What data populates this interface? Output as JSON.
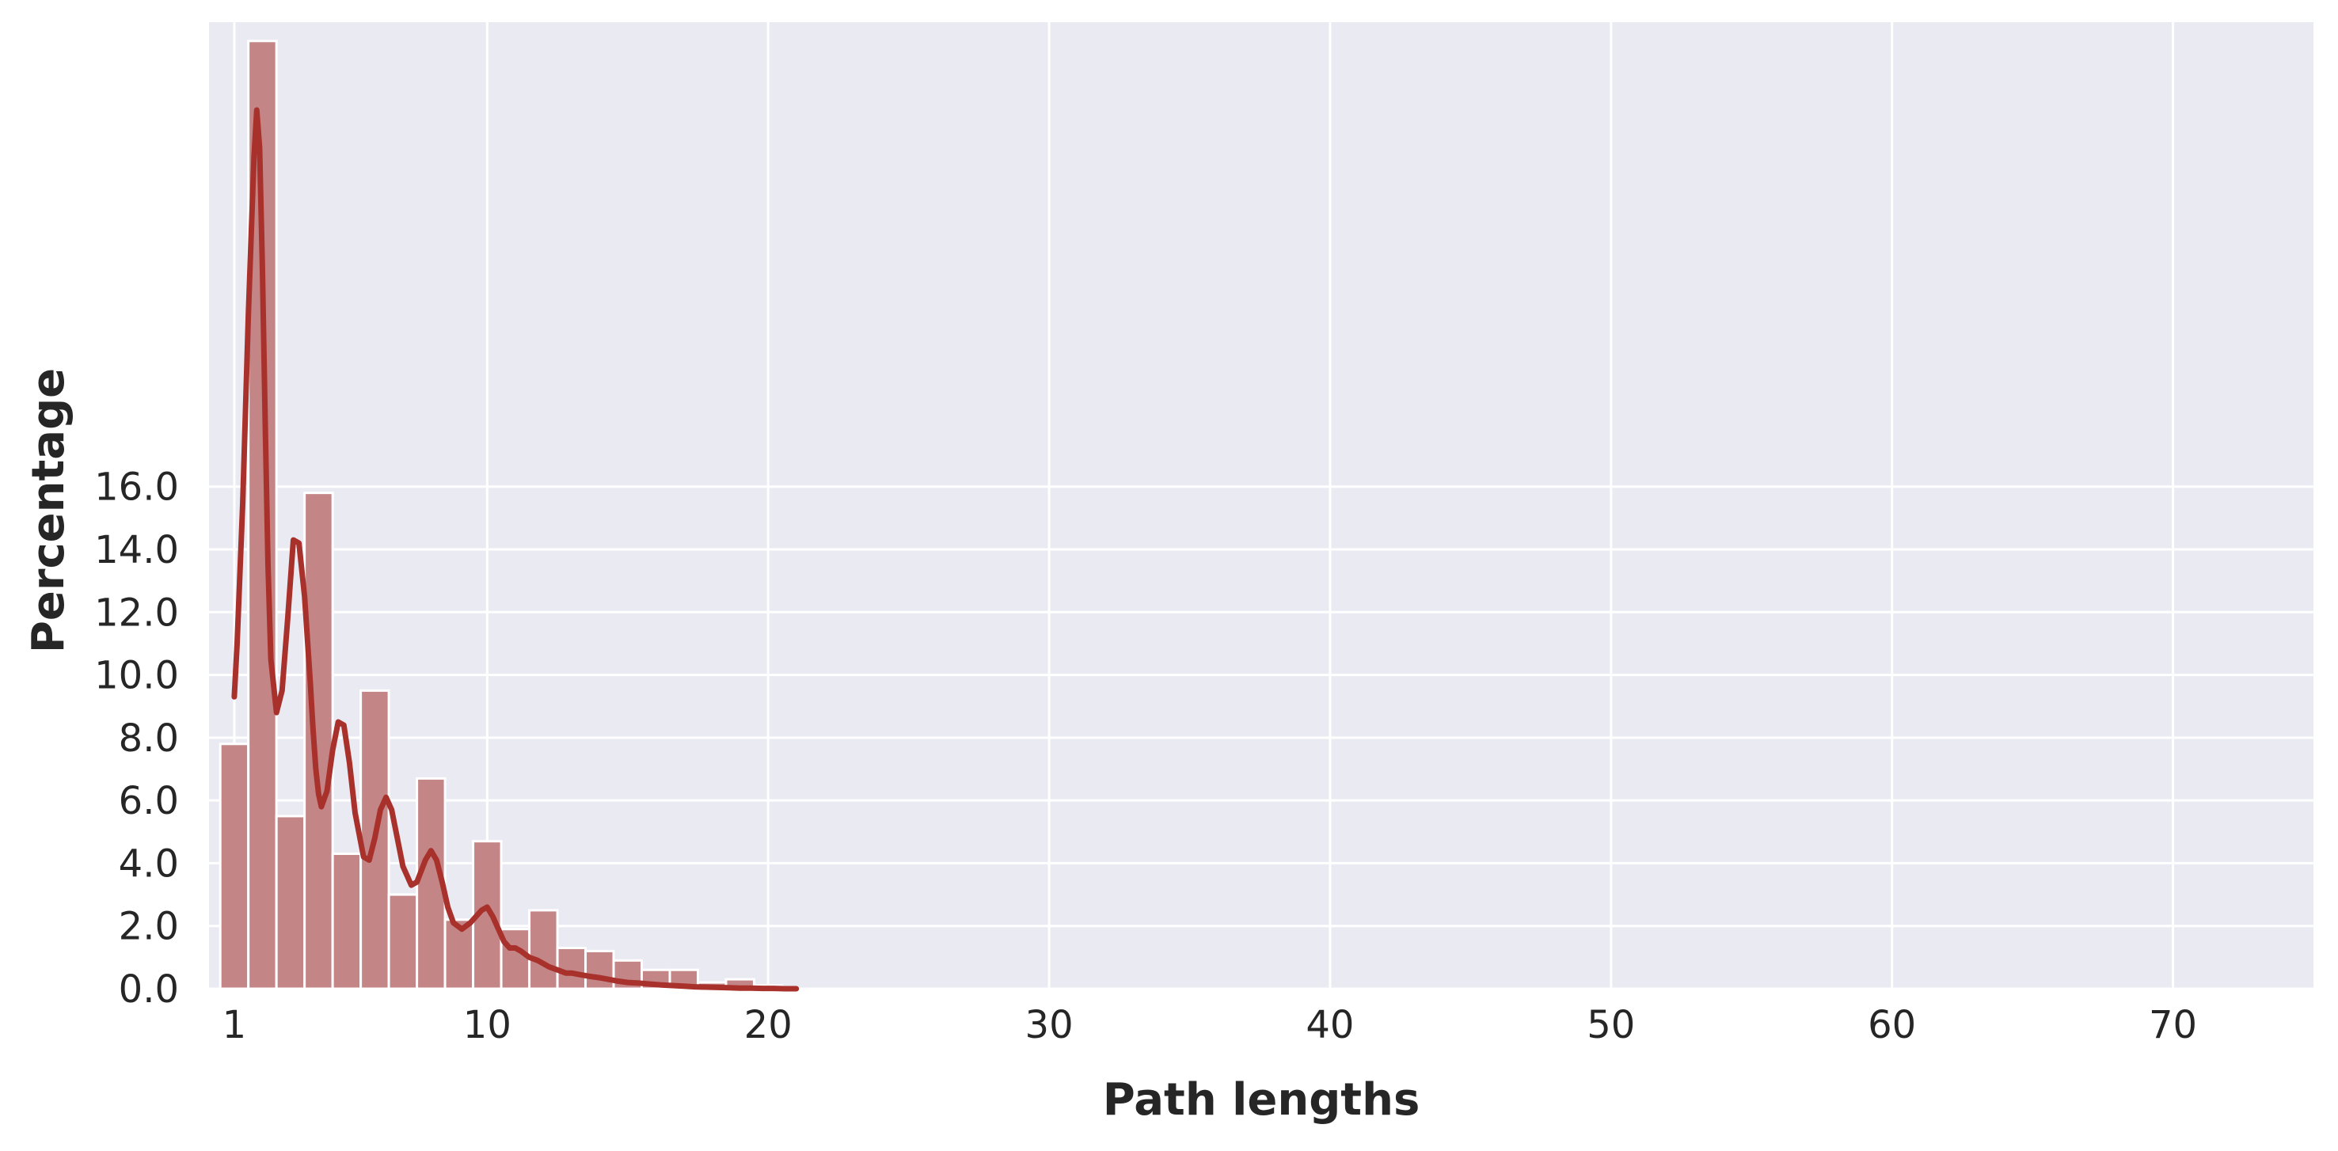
{
  "chart_data": {
    "type": "bar",
    "xlabel": "Path lengths",
    "ylabel": "Percentage",
    "xlim": [
      0.1,
      75
    ],
    "ylim": [
      0,
      30.8
    ],
    "x_ticks": [
      1,
      10,
      20,
      30,
      40,
      50,
      60,
      70
    ],
    "y_ticks": [
      0,
      2,
      4,
      6,
      8,
      10,
      12,
      14,
      16
    ],
    "x_tick_labels": [
      "1",
      "10",
      "20",
      "30",
      "40",
      "50",
      "60",
      "70"
    ],
    "y_tick_labels": [
      "0.0",
      "2.0",
      "4.0",
      "6.0",
      "8.0",
      "10.0",
      "12.0",
      "14.0",
      "16.0"
    ],
    "grid": true,
    "bin_width": 1,
    "bins": [
      {
        "x": 1,
        "value": 7.8
      },
      {
        "x": 2,
        "value": 30.2
      },
      {
        "x": 3,
        "value": 5.5
      },
      {
        "x": 4,
        "value": 15.8
      },
      {
        "x": 5,
        "value": 4.3
      },
      {
        "x": 6,
        "value": 9.5
      },
      {
        "x": 7,
        "value": 3.0
      },
      {
        "x": 8,
        "value": 6.7
      },
      {
        "x": 9,
        "value": 2.2
      },
      {
        "x": 10,
        "value": 4.7
      },
      {
        "x": 11,
        "value": 1.9
      },
      {
        "x": 12,
        "value": 2.5
      },
      {
        "x": 13,
        "value": 1.3
      },
      {
        "x": 14,
        "value": 1.2
      },
      {
        "x": 15,
        "value": 0.9
      },
      {
        "x": 16,
        "value": 0.6
      },
      {
        "x": 17,
        "value": 0.6
      },
      {
        "x": 18,
        "value": 0.2
      },
      {
        "x": 19,
        "value": 0.3
      },
      {
        "x": 20,
        "value": 0.1
      }
    ],
    "kde": {
      "x": [
        1.0,
        1.1,
        1.3,
        1.5,
        1.7,
        1.8,
        1.9,
        2.0,
        2.1,
        2.2,
        2.3,
        2.5,
        2.7,
        2.9,
        3.1,
        3.3,
        3.5,
        3.7,
        3.8,
        3.9,
        4.0,
        4.1,
        4.3,
        4.5,
        4.7,
        4.9,
        5.1,
        5.3,
        5.6,
        5.8,
        6.0,
        6.2,
        6.4,
        6.6,
        6.8,
        7.0,
        7.3,
        7.5,
        7.8,
        8.0,
        8.2,
        8.4,
        8.6,
        8.8,
        9.1,
        9.4,
        9.8,
        10.0,
        10.2,
        10.4,
        10.6,
        10.8,
        11.0,
        11.2,
        11.5,
        11.8,
        12.0,
        12.2,
        12.5,
        12.8,
        13.0,
        13.3,
        13.6,
        14.0,
        14.3,
        14.6,
        15.0,
        15.4,
        15.8,
        16.2,
        16.6,
        17.0,
        17.4,
        17.8,
        18.2,
        18.6,
        19.0,
        19.4,
        19.8,
        20.2,
        20.6,
        21.0
      ],
      "y": [
        9.3,
        11.0,
        15.5,
        21.5,
        26.5,
        28.0,
        26.8,
        23.0,
        18.0,
        13.5,
        10.5,
        8.8,
        9.5,
        11.8,
        14.3,
        14.2,
        12.5,
        9.8,
        8.3,
        7.0,
        6.2,
        5.8,
        6.3,
        7.6,
        8.5,
        8.4,
        7.2,
        5.6,
        4.2,
        4.1,
        4.8,
        5.7,
        6.1,
        5.7,
        4.8,
        3.9,
        3.3,
        3.4,
        4.1,
        4.4,
        4.1,
        3.4,
        2.6,
        2.1,
        1.9,
        2.1,
        2.5,
        2.6,
        2.3,
        1.9,
        1.5,
        1.3,
        1.3,
        1.2,
        1.0,
        0.9,
        0.8,
        0.7,
        0.6,
        0.5,
        0.5,
        0.45,
        0.4,
        0.35,
        0.3,
        0.25,
        0.2,
        0.18,
        0.15,
        0.12,
        0.1,
        0.08,
        0.06,
        0.05,
        0.04,
        0.03,
        0.02,
        0.02,
        0.01,
        0.01,
        0.0,
        0.0
      ]
    },
    "colors": {
      "background": "#eaeaf2",
      "grid": "#ffffff",
      "bar_fill": "#c48587",
      "bar_edge": "#ffffff",
      "kde_line": "#a8312c",
      "text": "#262626"
    }
  }
}
